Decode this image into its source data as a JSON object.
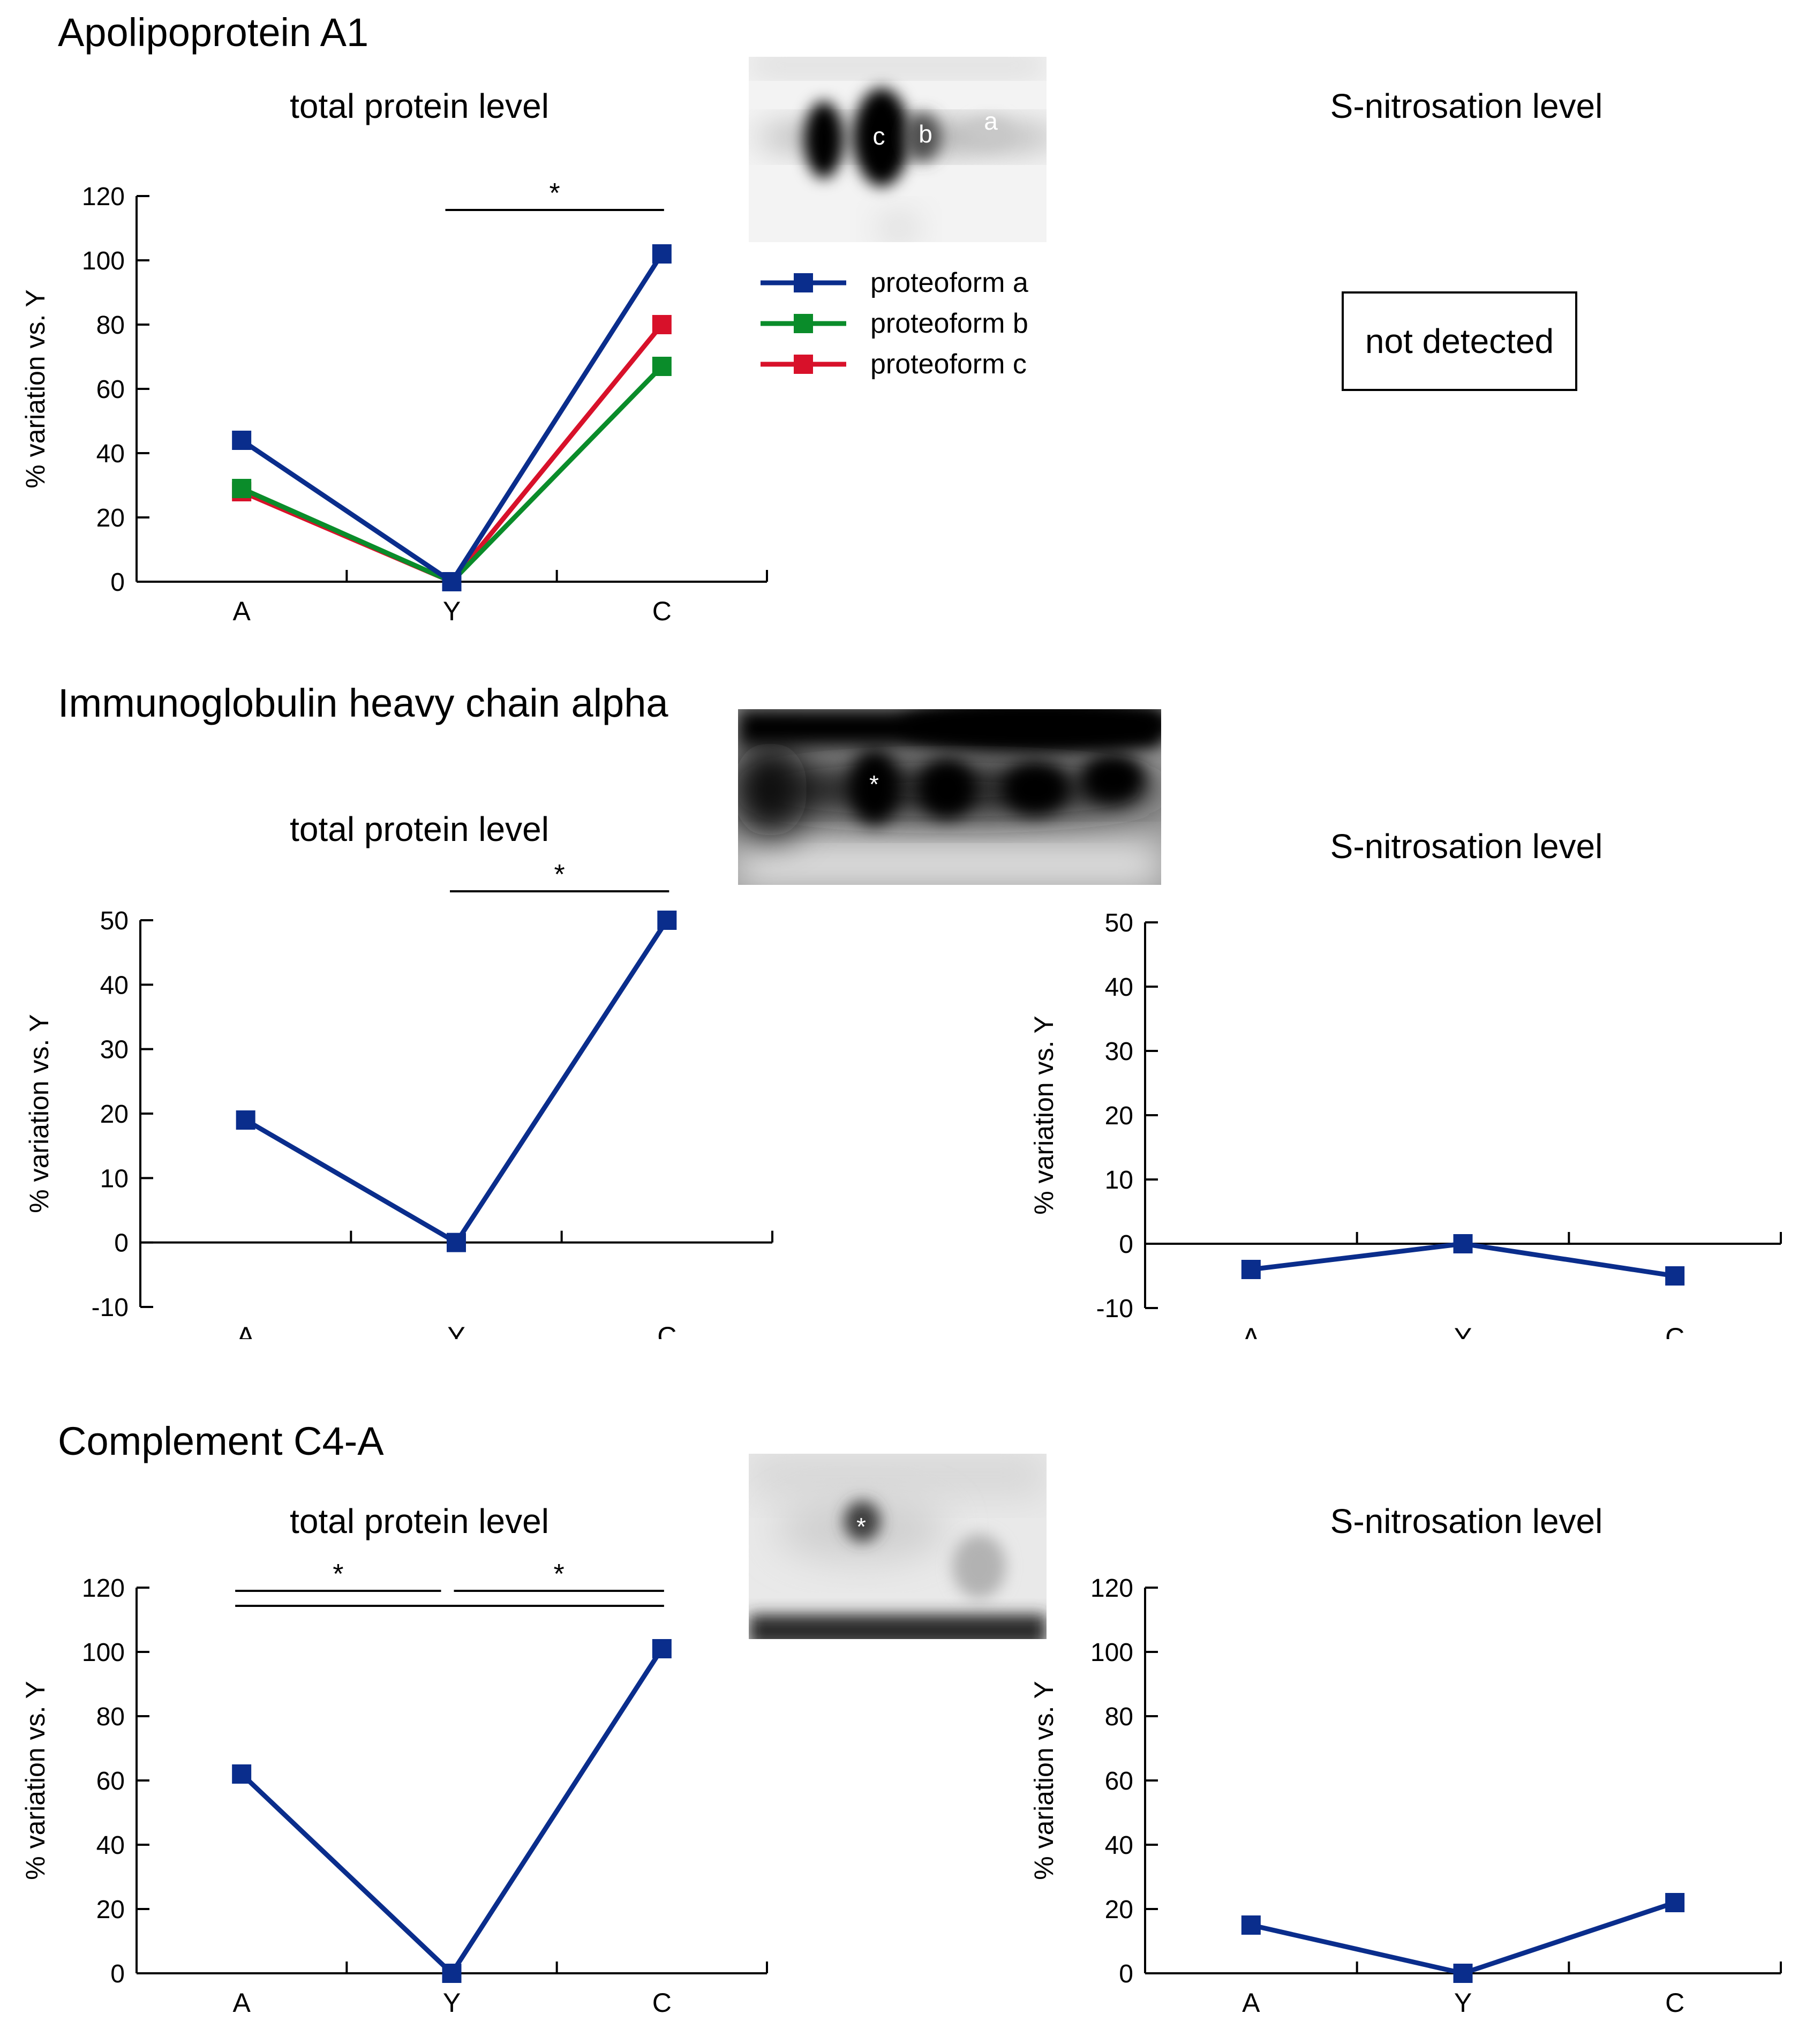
{
  "sections": [
    {
      "title": "Apolipoprotein A1",
      "total_title": "total protein level",
      "snitro_title": "S-nitrosation level",
      "gel_labels": [
        "c",
        "b",
        "a"
      ],
      "not_detected": "not detected"
    },
    {
      "title": "Immunoglobulin heavy chain alpha",
      "total_title": "total protein level",
      "snitro_title": "S-nitrosation level",
      "gel_labels": [
        "*"
      ]
    },
    {
      "title": "Complement C4-A",
      "total_title": "total protein level",
      "snitro_title": "S-nitrosation level",
      "gel_labels": [
        "*"
      ]
    }
  ],
  "legend": [
    {
      "label": "proteoform a",
      "color": "#0a2d8c"
    },
    {
      "label": "proteoform b",
      "color": "#0a8c2a"
    },
    {
      "label": "proteoform c",
      "color": "#d8112a"
    }
  ],
  "chart_data": [
    {
      "id": "apoa1-total",
      "type": "line",
      "categories": [
        "A",
        "Y",
        "C"
      ],
      "ylabel": "% variation vs. Y",
      "ylim": [
        0,
        120
      ],
      "yticks": [
        0,
        20,
        40,
        60,
        80,
        100,
        120
      ],
      "series": [
        {
          "name": "proteoform a",
          "values": [
            44,
            0,
            102
          ],
          "color": "#0a2d8c"
        },
        {
          "name": "proteoform b",
          "values": [
            29,
            0,
            67
          ],
          "color": "#0a8c2a"
        },
        {
          "name": "proteoform c",
          "values": [
            28,
            0,
            80
          ],
          "color": "#d8112a"
        }
      ],
      "significance": [
        {
          "from": 1,
          "to": 2,
          "label": "*"
        }
      ]
    },
    {
      "id": "igha-total",
      "type": "line",
      "categories": [
        "A",
        "Y",
        "C"
      ],
      "ylabel": "% variation vs. Y",
      "ylim": [
        -10,
        50
      ],
      "yticks": [
        -10,
        0,
        10,
        20,
        30,
        40,
        50
      ],
      "series": [
        {
          "name": "total",
          "values": [
            19,
            0,
            50
          ],
          "color": "#0a2d8c"
        }
      ],
      "significance": [
        {
          "from": 1,
          "to": 2,
          "label": "*"
        }
      ]
    },
    {
      "id": "igha-snitro",
      "type": "line",
      "categories": [
        "A",
        "Y",
        "C"
      ],
      "ylabel": "% variation vs. Y",
      "ylim": [
        -10,
        50
      ],
      "yticks": [
        -10,
        0,
        10,
        20,
        30,
        40,
        50
      ],
      "series": [
        {
          "name": "S-nitrosation",
          "values": [
            -4,
            0,
            -5
          ],
          "color": "#0a2d8c"
        }
      ],
      "significance": []
    },
    {
      "id": "c4a-total",
      "type": "line",
      "categories": [
        "A",
        "Y",
        "C"
      ],
      "ylabel": "% variation vs. Y",
      "ylim": [
        0,
        120
      ],
      "yticks": [
        0,
        20,
        40,
        60,
        80,
        100,
        120
      ],
      "series": [
        {
          "name": "total",
          "values": [
            62,
            0,
            101
          ],
          "color": "#0a2d8c"
        }
      ],
      "significance": [
        {
          "from": 0,
          "to": 1,
          "label": "*"
        },
        {
          "from": 1,
          "to": 2,
          "label": "*"
        },
        {
          "from": 0,
          "to": 2,
          "label": ""
        }
      ]
    },
    {
      "id": "c4a-snitro",
      "type": "line",
      "categories": [
        "A",
        "Y",
        "C"
      ],
      "ylabel": "% variation vs. Y",
      "ylim": [
        0,
        120
      ],
      "yticks": [
        0,
        20,
        40,
        60,
        80,
        100,
        120
      ],
      "series": [
        {
          "name": "S-nitrosation",
          "values": [
            15,
            0,
            22
          ],
          "color": "#0a2d8c"
        }
      ],
      "significance": []
    }
  ]
}
